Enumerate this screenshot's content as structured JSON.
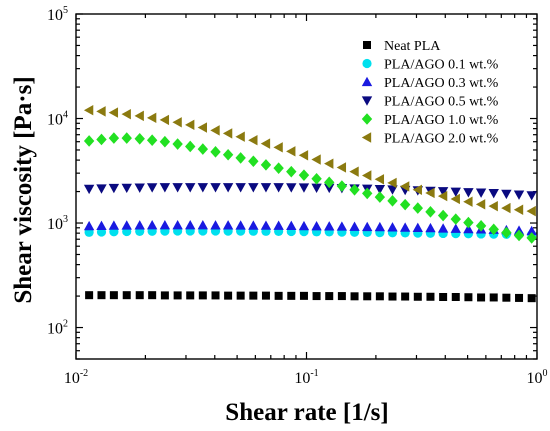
{
  "chart_data": {
    "type": "scatter",
    "xlabel": "Shear rate [1/s]",
    "ylabel": "Shear viscosity [Pa·s]",
    "x_scale": "log",
    "y_scale": "log",
    "xlim": [
      0.01,
      1.0
    ],
    "ylim": [
      50,
      100000
    ],
    "x_ticks": [
      {
        "value": 0.01,
        "base": "10",
        "exp": "-2"
      },
      {
        "value": 0.1,
        "base": "10",
        "exp": "-1"
      },
      {
        "value": 1.0,
        "base": "10",
        "exp": "0"
      }
    ],
    "y_ticks": [
      {
        "value": 100,
        "base": "10",
        "exp": "2"
      },
      {
        "value": 1000,
        "base": "10",
        "exp": "3"
      },
      {
        "value": 10000,
        "base": "10",
        "exp": "4"
      },
      {
        "value": 100000,
        "base": "10",
        "exp": "5"
      }
    ],
    "grid": false,
    "legend_position": "top-right",
    "series": [
      {
        "name": "Neat PLA",
        "marker": "square",
        "color": "#000000",
        "x": [
          0.0114,
          0.0129,
          0.0146,
          0.0166,
          0.0189,
          0.0214,
          0.0243,
          0.0276,
          0.0313,
          0.0355,
          0.0403,
          0.0457,
          0.0518,
          0.0588,
          0.0667,
          0.0757,
          0.0859,
          0.0975,
          0.1106,
          0.1255,
          0.1424,
          0.1616,
          0.1834,
          0.2081,
          0.2361,
          0.2679,
          0.304,
          0.345,
          0.3915,
          0.4442,
          0.504,
          0.572,
          0.649,
          0.7365,
          0.8357,
          0.9483
        ],
        "y": [
          204,
          204,
          204,
          204,
          204,
          204,
          203,
          203,
          203,
          203,
          203,
          202,
          202,
          202,
          202,
          201,
          201,
          201,
          200,
          200,
          200,
          199,
          199,
          199,
          198,
          198,
          197,
          197,
          196,
          196,
          195,
          194,
          194,
          193,
          192,
          191
        ]
      },
      {
        "name": "PLA/AGO 0.1 wt.%",
        "marker": "circle",
        "color": "#00e0ee",
        "x": [
          0.0114,
          0.0129,
          0.0146,
          0.0166,
          0.0189,
          0.0214,
          0.0243,
          0.0276,
          0.0313,
          0.0355,
          0.0403,
          0.0457,
          0.0518,
          0.0588,
          0.0667,
          0.0757,
          0.0859,
          0.0975,
          0.1106,
          0.1255,
          0.1424,
          0.1616,
          0.1834,
          0.2081,
          0.2361,
          0.2679,
          0.304,
          0.345,
          0.3915,
          0.4442,
          0.504,
          0.572,
          0.649,
          0.7365,
          0.8357,
          0.9483
        ],
        "y": [
          815,
          820,
          825,
          830,
          832,
          834,
          836,
          838,
          838,
          838,
          838,
          837,
          836,
          835,
          833,
          831,
          829,
          827,
          824,
          822,
          819,
          816,
          813,
          810,
          807,
          804,
          801,
          798,
          795,
          792,
          789,
          786,
          783,
          780,
          777,
          774
        ]
      },
      {
        "name": "PLA/AGO 0.3 wt.%",
        "marker": "triangle-up",
        "color": "#1a1ae0",
        "x": [
          0.0114,
          0.0129,
          0.0146,
          0.0166,
          0.0189,
          0.0214,
          0.0243,
          0.0276,
          0.0313,
          0.0355,
          0.0403,
          0.0457,
          0.0518,
          0.0588,
          0.0667,
          0.0757,
          0.0859,
          0.0975,
          0.1106,
          0.1255,
          0.1424,
          0.1616,
          0.1834,
          0.2081,
          0.2361,
          0.2679,
          0.304,
          0.345,
          0.3915,
          0.4442,
          0.504,
          0.572,
          0.649,
          0.7365,
          0.8357,
          0.9483
        ],
        "y": [
          935,
          940,
          945,
          948,
          950,
          952,
          953,
          953,
          953,
          952,
          951,
          950,
          948,
          946,
          944,
          942,
          939,
          936,
          933,
          930,
          926,
          922,
          918,
          914,
          909,
          904,
          899,
          894,
          888,
          882,
          876,
          869,
          862,
          855,
          847,
          839
        ]
      },
      {
        "name": "PLA/AGO 0.5 wt.%",
        "marker": "triangle-down",
        "color": "#0a0a80",
        "x": [
          0.0114,
          0.0129,
          0.0146,
          0.0166,
          0.0189,
          0.0214,
          0.0243,
          0.0276,
          0.0313,
          0.0355,
          0.0403,
          0.0457,
          0.0518,
          0.0588,
          0.0667,
          0.0757,
          0.0859,
          0.0975,
          0.1106,
          0.1255,
          0.1424,
          0.1616,
          0.1834,
          0.2081,
          0.2361,
          0.2679,
          0.304,
          0.345,
          0.3915,
          0.4442,
          0.504,
          0.572,
          0.649,
          0.7365,
          0.8357,
          0.9483
        ],
        "y": [
          2120,
          2140,
          2160,
          2170,
          2180,
          2190,
          2200,
          2200,
          2200,
          2200,
          2200,
          2200,
          2200,
          2200,
          2200,
          2195,
          2190,
          2185,
          2175,
          2165,
          2155,
          2140,
          2125,
          2110,
          2090,
          2070,
          2050,
          2030,
          2010,
          1990,
          1970,
          1950,
          1930,
          1900,
          1870,
          1840
        ]
      },
      {
        "name": "PLA/AGO 1.0 wt.%",
        "marker": "diamond",
        "color": "#22e022",
        "x": [
          0.0114,
          0.0129,
          0.0146,
          0.0166,
          0.0189,
          0.0214,
          0.0243,
          0.0276,
          0.0313,
          0.0355,
          0.0403,
          0.0457,
          0.0518,
          0.0588,
          0.0667,
          0.0757,
          0.0859,
          0.0975,
          0.1106,
          0.1255,
          0.1424,
          0.1616,
          0.1834,
          0.2081,
          0.2361,
          0.2679,
          0.304,
          0.345,
          0.3915,
          0.4442,
          0.504,
          0.572,
          0.649,
          0.7365,
          0.8357,
          0.9483
        ],
        "y": [
          6100,
          6300,
          6500,
          6500,
          6400,
          6200,
          6000,
          5700,
          5400,
          5100,
          4800,
          4500,
          4200,
          3900,
          3600,
          3350,
          3100,
          2870,
          2650,
          2450,
          2260,
          2080,
          1920,
          1770,
          1630,
          1500,
          1390,
          1280,
          1180,
          1090,
          1010,
          940,
          870,
          810,
          760,
          720
        ]
      },
      {
        "name": "PLA/AGO 2.0 wt.%",
        "marker": "triangle-left",
        "color": "#8b7a10",
        "x": [
          0.0114,
          0.0129,
          0.0146,
          0.0166,
          0.0189,
          0.0214,
          0.0243,
          0.0276,
          0.0313,
          0.0355,
          0.0403,
          0.0457,
          0.0518,
          0.0588,
          0.0667,
          0.0757,
          0.0859,
          0.0975,
          0.1106,
          0.1255,
          0.1424,
          0.1616,
          0.1834,
          0.2081,
          0.2361,
          0.2679,
          0.304,
          0.345,
          0.3915,
          0.4442,
          0.504,
          0.572,
          0.649,
          0.7365,
          0.8357,
          0.9483
        ],
        "y": [
          12000,
          11700,
          11400,
          11000,
          10600,
          10150,
          9700,
          9200,
          8700,
          8200,
          7700,
          7200,
          6700,
          6200,
          5750,
          5300,
          4850,
          4450,
          4050,
          3700,
          3400,
          3100,
          2850,
          2620,
          2420,
          2240,
          2080,
          1940,
          1810,
          1700,
          1600,
          1510,
          1450,
          1390,
          1340,
          1300
        ]
      }
    ]
  }
}
